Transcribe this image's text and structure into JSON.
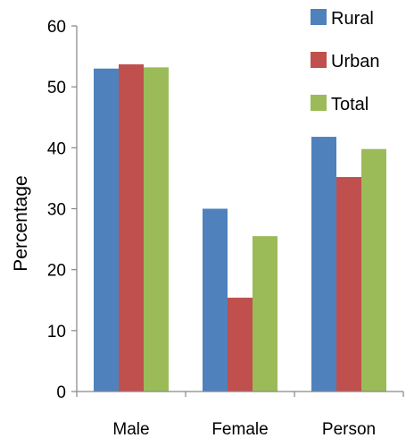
{
  "chart_data": {
    "type": "bar",
    "categories": [
      "Male",
      "Female",
      "Person"
    ],
    "series": [
      {
        "name": "Rural",
        "values": [
          53.0,
          30.0,
          41.8
        ],
        "color": "#4F81BD"
      },
      {
        "name": "Urban",
        "values": [
          53.7,
          15.4,
          35.2
        ],
        "color": "#C0504D"
      },
      {
        "name": "Total",
        "values": [
          53.2,
          25.5,
          39.8
        ],
        "color": "#9BBB59"
      }
    ],
    "title": "",
    "xlabel": "",
    "ylabel": "Percentage",
    "ylim": [
      0,
      60
    ],
    "yticks": [
      "0",
      "10",
      "20",
      "30",
      "40",
      "50",
      "60"
    ],
    "grid": false,
    "legend_position": "top-right"
  }
}
